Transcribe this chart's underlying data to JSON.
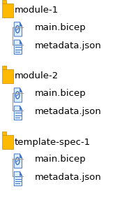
{
  "bg_color": "#ffffff",
  "text_color": "#000000",
  "folder_color": "#FFB900",
  "file_color": "#4472C4",
  "line_color": "#999999",
  "font_size": 9.5,
  "groups": [
    {
      "folder_label": "module-1",
      "files": [
        "main.bicep",
        "metadata.json"
      ]
    },
    {
      "folder_label": "module-2",
      "files": [
        "main.bicep",
        "metadata.json"
      ]
    },
    {
      "folder_label": "template-spec-1",
      "files": [
        "main.bicep",
        "metadata.json"
      ]
    }
  ]
}
